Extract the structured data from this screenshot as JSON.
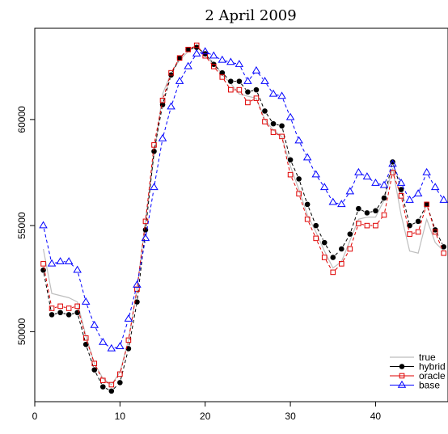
{
  "chart_data": {
    "type": "line",
    "title": "2 April 2009",
    "xlabel": "",
    "ylabel": "",
    "xlim": [
      0,
      48.5
    ],
    "ylim": [
      46700,
      64300
    ],
    "x_ticks": [
      0,
      10,
      20,
      30,
      40
    ],
    "y_ticks": [
      50000,
      55000,
      60000
    ],
    "legend_position": "bottom-right",
    "x": [
      1,
      2,
      3,
      4,
      5,
      6,
      7,
      8,
      9,
      10,
      11,
      12,
      13,
      14,
      15,
      16,
      17,
      18,
      19,
      20,
      21,
      22,
      23,
      24,
      25,
      26,
      27,
      28,
      29,
      30,
      31,
      32,
      33,
      34,
      35,
      36,
      37,
      38,
      39,
      40,
      41,
      42,
      43,
      44,
      45,
      46,
      47,
      48
    ],
    "series": [
      {
        "name": "true",
        "color": "#bebebe",
        "marker": "none",
        "values": [
          53900,
          51800,
          51700,
          51600,
          51400,
          49800,
          48500,
          47800,
          47500,
          48100,
          49600,
          52000,
          55300,
          58300,
          61200,
          62200,
          62800,
          63200,
          63500,
          63000,
          62700,
          62100,
          61700,
          61200,
          61100,
          61000,
          60000,
          59500,
          59200,
          57800,
          56700,
          55500,
          54700,
          53800,
          53000,
          53300,
          54300,
          55300,
          55400,
          55400,
          56200,
          57700,
          55500,
          53800,
          53700,
          55300,
          54200,
          53800
        ]
      },
      {
        "name": "hybrid",
        "color": "#000000",
        "marker": "filled-circle",
        "values": [
          52900,
          50800,
          50900,
          50800,
          50900,
          49400,
          48200,
          47400,
          47200,
          47600,
          49200,
          51400,
          54800,
          58500,
          60700,
          62100,
          62900,
          63300,
          63400,
          63100,
          62600,
          62200,
          61800,
          61800,
          61300,
          61400,
          60400,
          59800,
          59700,
          58100,
          57200,
          56000,
          55000,
          54200,
          53500,
          53900,
          54600,
          55800,
          55600,
          55700,
          56300,
          58000,
          56700,
          55000,
          55200,
          56000,
          54800,
          54000
        ]
      },
      {
        "name": "oracle",
        "color": "#df0000",
        "marker": "open-square",
        "values": [
          53200,
          51100,
          51200,
          51100,
          51200,
          49700,
          48500,
          47700,
          47500,
          48000,
          49600,
          52000,
          55200,
          58800,
          60900,
          62200,
          62900,
          63300,
          63500,
          63000,
          62500,
          62000,
          61400,
          61400,
          60800,
          61000,
          59900,
          59400,
          59200,
          57400,
          56500,
          55300,
          54400,
          53500,
          52800,
          53200,
          53900,
          55100,
          55000,
          55000,
          55500,
          57500,
          56400,
          54600,
          54700,
          56000,
          54700,
          53700
        ]
      },
      {
        "name": "base",
        "color": "#0000ff",
        "marker": "open-triangle",
        "values": [
          55000,
          53200,
          53300,
          53300,
          52900,
          51400,
          50300,
          49500,
          49200,
          49300,
          50600,
          52200,
          54400,
          56800,
          59100,
          60600,
          61800,
          62500,
          63100,
          63200,
          63000,
          62800,
          62700,
          62600,
          61800,
          62300,
          61800,
          61200,
          61100,
          60100,
          59000,
          58200,
          57400,
          56800,
          56100,
          56000,
          56600,
          57500,
          57300,
          57000,
          56900,
          57900,
          57000,
          56200,
          56500,
          57500,
          56800,
          56200
        ]
      }
    ]
  }
}
